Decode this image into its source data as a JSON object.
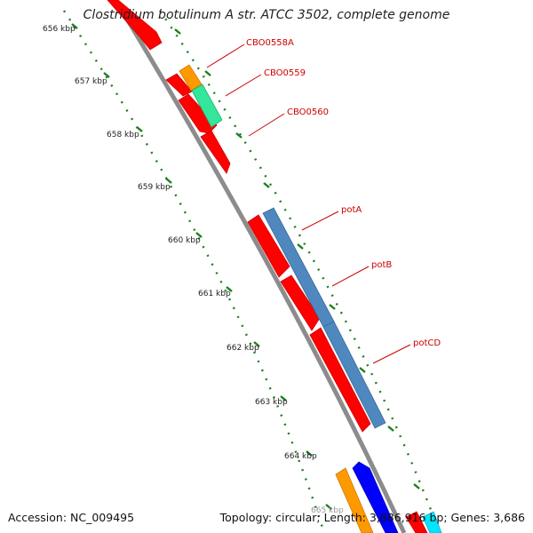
{
  "title": "Clostridium botulinum A str. ATCC 3502, complete genome",
  "accession": "Accession: NC_009495",
  "summary": "Topology: circular; Length: 3,886,916 bp; Genes: 3,686",
  "ruler": {
    "labels": [
      "656 kbp",
      "657 kbp",
      "658 kbp",
      "659 kbp",
      "660 kbp",
      "661 kbp",
      "662 kbp",
      "663 kbp",
      "664 kbp",
      "665 kbp"
    ],
    "color": "#1a7f1a"
  },
  "colors": {
    "backbone": "#8c8c8c",
    "cds_reverse": "#ff0000",
    "cds_orange": "#ff9900",
    "cds_green": "#33e699",
    "cds_steelblue": "#4f88bf",
    "cds_blue": "#0000ff",
    "cds_cyan": "#00e5ff",
    "label": "#cc0000"
  },
  "genes": [
    {
      "name": "CBO0558A"
    },
    {
      "name": "CBO0559"
    },
    {
      "name": "CBO0560"
    },
    {
      "name": "potA"
    },
    {
      "name": "potB"
    },
    {
      "name": "potCD"
    }
  ]
}
